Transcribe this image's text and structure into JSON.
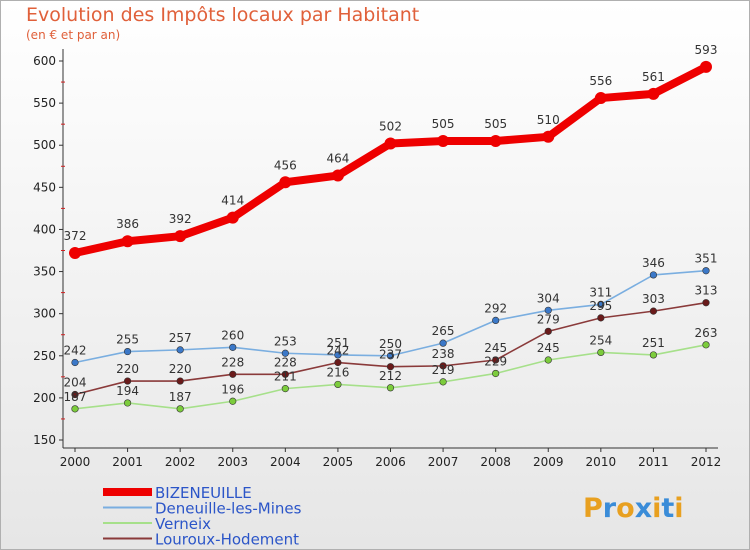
{
  "chart_data": {
    "type": "line",
    "title": "Evolution des Impôts locaux par Habitant",
    "subtitle": "(en € et par an)",
    "x": [
      "2000",
      "2001",
      "2002",
      "2003",
      "2004",
      "2005",
      "2006",
      "2007",
      "2008",
      "2009",
      "2010",
      "2011",
      "2012"
    ],
    "ylim": [
      150,
      600
    ],
    "yticks": [
      150,
      200,
      250,
      300,
      350,
      400,
      450,
      500,
      550,
      600
    ],
    "grid": false,
    "legend_position": "bottom-left",
    "series": [
      {
        "name": "BIZENEUILLE",
        "color": "#ee0000",
        "marker_color": "#ee0000",
        "values": [
          372,
          386,
          392,
          414,
          456,
          464,
          502,
          505,
          505,
          510,
          556,
          561,
          593
        ]
      },
      {
        "name": "Deneuille-les-Mines",
        "color": "#7aaee0",
        "marker_color": "#3b78c8",
        "values": [
          242,
          255,
          257,
          260,
          253,
          251,
          250,
          265,
          292,
          304,
          311,
          346,
          351
        ]
      },
      {
        "name": "Verneix",
        "color": "#a6e08a",
        "marker_color": "#7ccc3c",
        "values": [
          187,
          194,
          187,
          196,
          211,
          216,
          212,
          219,
          229,
          245,
          254,
          251,
          263
        ]
      },
      {
        "name": "Louroux-Hodement",
        "color": "#8a3a3a",
        "marker_color": "#6a1a1a",
        "values": [
          204,
          220,
          220,
          228,
          228,
          242,
          237,
          238,
          245,
          279,
          295,
          303,
          313
        ]
      }
    ]
  },
  "logo": {
    "text": "Proxiti",
    "letter_colors": [
      "#e8a020",
      "#3a8cd8",
      "#e8a020",
      "#3a8cd8",
      "#e8a020",
      "#3a8cd8",
      "#e8a020"
    ]
  }
}
